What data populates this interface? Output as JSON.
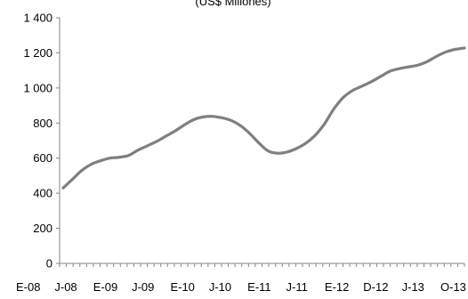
{
  "chart_data": {
    "type": "line",
    "title": "(US$ Millones)",
    "xlabel": "",
    "ylabel": "",
    "ylim": [
      0,
      1400
    ],
    "yticks": [
      0,
      200,
      400,
      600,
      800,
      1000,
      1200,
      1400
    ],
    "ytick_labels": [
      "0",
      "200",
      "400",
      "600",
      "800",
      "1 000",
      "1 200",
      "1 400"
    ],
    "xtick_labels": [
      "E-08",
      "J-08",
      "E-09",
      "J-09",
      "E-10",
      "J-10",
      "E-11",
      "J-11",
      "E-12",
      "D-12",
      "J-13",
      "O-13"
    ],
    "grid": false,
    "line_color": "#7f7f7f",
    "series": [
      {
        "values": [
          430,
          480,
          530,
          565,
          585,
          600,
          605,
          615,
          645,
          670,
          695,
          725,
          755,
          790,
          820,
          835,
          838,
          830,
          815,
          785,
          740,
          685,
          640,
          628,
          635,
          655,
          685,
          730,
          795,
          880,
          945,
          985,
          1010,
          1035,
          1065,
          1095,
          1110,
          1120,
          1130,
          1150,
          1180,
          1205,
          1220,
          1228
        ]
      }
    ]
  }
}
